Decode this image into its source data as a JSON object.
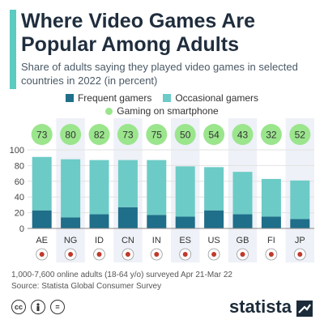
{
  "header": {
    "title": "Where Video Games Are Popular Among Adults",
    "subtitle": "Share of adults saying they played video games in selected countries in 2022 (in percent)",
    "accent_color": "#5ccbc0"
  },
  "legend": {
    "frequent": "Frequent gamers",
    "occasional": "Occasional gamers",
    "smartphone": "Gaming on smartphone"
  },
  "colors": {
    "frequent": "#1f6e8a",
    "occasional": "#6ccbc6",
    "smartphone": "#9be58d",
    "band": "#eef1f7",
    "grid": "#e2e2e2"
  },
  "chart_data": {
    "type": "bar",
    "stacked": true,
    "categories": [
      "AE",
      "NG",
      "ID",
      "CN",
      "IN",
      "ES",
      "US",
      "GB",
      "FI",
      "JP"
    ],
    "series": [
      {
        "name": "Frequent gamers",
        "values": [
          23,
          14,
          18,
          27,
          17,
          15,
          23,
          18,
          15,
          12
        ]
      },
      {
        "name": "Occasional gamers",
        "values": [
          68,
          74,
          69,
          60,
          70,
          64,
          55,
          54,
          48,
          49
        ]
      }
    ],
    "smartphone": {
      "name": "Gaming on smartphone",
      "values": [
        73,
        80,
        82,
        73,
        75,
        50,
        54,
        43,
        32,
        52
      ]
    },
    "ylim": [
      0,
      100
    ],
    "yticks": [
      0,
      20,
      40,
      60,
      80,
      100
    ],
    "grid": true,
    "legend_position": "top"
  },
  "note": {
    "survey": "1,000-7,600 online adults (18-64 y/o) surveyed Apr 21-Mar 22",
    "source": "Source: Statista Global Consumer Survey"
  },
  "footer": {
    "brand": "statista",
    "license_icons": [
      "cc-icon",
      "person-icon",
      "equals-icon"
    ]
  }
}
